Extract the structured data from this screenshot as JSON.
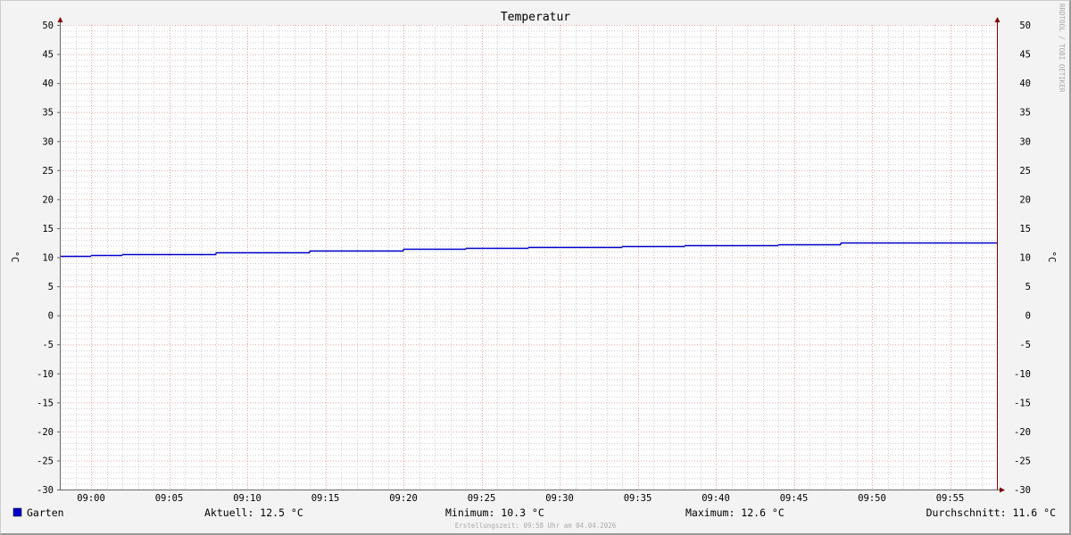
{
  "chart_data": {
    "type": "line",
    "title": "Temperatur",
    "ylabel": "°C",
    "ylim": [
      -30,
      50
    ],
    "y_ticks": [
      50,
      45,
      40,
      35,
      30,
      25,
      20,
      15,
      10,
      5,
      0,
      -5,
      -10,
      -15,
      -20,
      -25,
      -30
    ],
    "xlim": [
      "08:58",
      "09:58"
    ],
    "x_ticks": [
      "09:00",
      "09:05",
      "09:10",
      "09:15",
      "09:20",
      "09:25",
      "09:30",
      "09:35",
      "09:40",
      "09:45",
      "09:50",
      "09:55"
    ],
    "grid": true,
    "series": [
      {
        "name": "Garten",
        "color": "#0000cc",
        "step": true,
        "points": [
          [
            "08:58",
            10.3
          ],
          [
            "09:00",
            10.4
          ],
          [
            "09:02",
            10.5
          ],
          [
            "09:04",
            10.6
          ],
          [
            "09:08",
            10.8
          ],
          [
            "09:14",
            11.1
          ],
          [
            "09:20",
            11.4
          ],
          [
            "09:24",
            11.6
          ],
          [
            "09:28",
            11.7
          ],
          [
            "09:34",
            11.9
          ],
          [
            "09:38",
            12.0
          ],
          [
            "09:44",
            12.2
          ],
          [
            "09:48",
            12.5
          ]
        ]
      }
    ],
    "legend": {
      "name": "Garten",
      "current": "Aktuell: 12.5 °C",
      "minimum": "Minimum: 10.3 °C",
      "maximum": "Maximum: 12.6 °C",
      "average": "Durchschnitt: 11.6 °C"
    },
    "created": "Erstellungszeit: 09:58 Uhr am 04.04.2026",
    "watermark": "RRDTOOL / TOBI OETIKER"
  },
  "colors": {
    "major_grid": "#e0a0a0",
    "minor_grid": "#cccccc",
    "axis": "#666666",
    "arrow": "#800000"
  }
}
